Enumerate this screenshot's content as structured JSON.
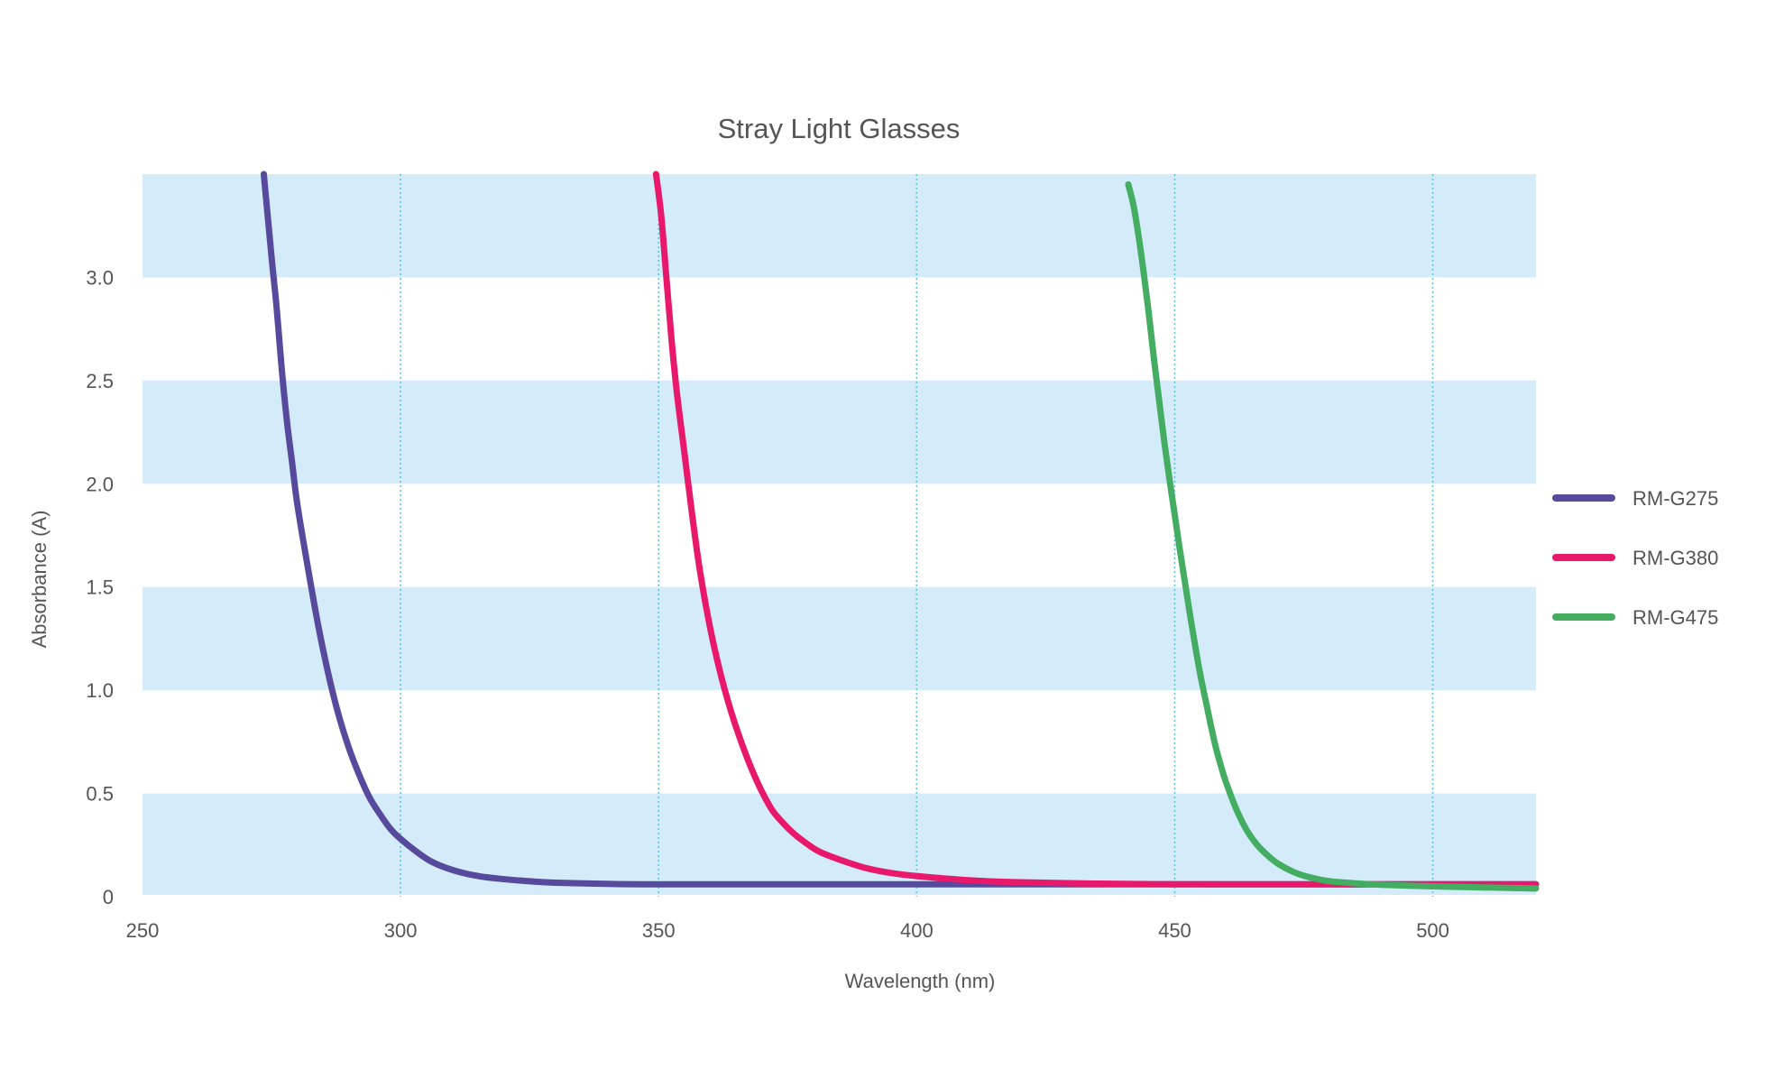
{
  "chart_data": {
    "type": "line",
    "title": "Stray Light Glasses",
    "xlabel": "Wavelength (nm)",
    "ylabel": "Absorbance (A)",
    "xlim": [
      250,
      520
    ],
    "ylim": [
      0,
      3.5
    ],
    "x_ticks": [
      250,
      300,
      350,
      400,
      450,
      500
    ],
    "x_tick_labels": [
      "250",
      "300",
      "350",
      "400",
      "450",
      "500"
    ],
    "y_ticks": [
      0,
      0.5,
      1.0,
      1.5,
      2.0,
      2.5,
      3.0
    ],
    "y_tick_labels": [
      "0",
      "0.5",
      "1.0",
      "1.5",
      "2.0",
      "2.5",
      "3.0"
    ],
    "grid": {
      "vertical": true,
      "horizontal_bands": true
    },
    "band_color": "#d4ecfa",
    "gridline_color": "#5bc0de",
    "legend_position": "right",
    "series": [
      {
        "name": "RM-G275",
        "color": "#574a9d",
        "points": [
          [
            273.5,
            3.5
          ],
          [
            275,
            3.1
          ],
          [
            276,
            2.85
          ],
          [
            277,
            2.55
          ],
          [
            278,
            2.3
          ],
          [
            279,
            2.1
          ],
          [
            280,
            1.9
          ],
          [
            282,
            1.6
          ],
          [
            284,
            1.32
          ],
          [
            286,
            1.08
          ],
          [
            288,
            0.88
          ],
          [
            290,
            0.72
          ],
          [
            292,
            0.59
          ],
          [
            294,
            0.48
          ],
          [
            296,
            0.4
          ],
          [
            298,
            0.33
          ],
          [
            300,
            0.28
          ],
          [
            303,
            0.22
          ],
          [
            306,
            0.17
          ],
          [
            310,
            0.13
          ],
          [
            315,
            0.1
          ],
          [
            320,
            0.085
          ],
          [
            325,
            0.075
          ],
          [
            330,
            0.068
          ],
          [
            340,
            0.062
          ],
          [
            350,
            0.06
          ],
          [
            380,
            0.06
          ],
          [
            420,
            0.06
          ],
          [
            470,
            0.06
          ],
          [
            520,
            0.06
          ]
        ]
      },
      {
        "name": "RM-G380",
        "color": "#e8186b",
        "points": [
          [
            349.5,
            3.5
          ],
          [
            350.5,
            3.3
          ],
          [
            351.5,
            3.0
          ],
          [
            352.5,
            2.7
          ],
          [
            353.5,
            2.45
          ],
          [
            355,
            2.15
          ],
          [
            356.5,
            1.85
          ],
          [
            358,
            1.58
          ],
          [
            360,
            1.3
          ],
          [
            362,
            1.08
          ],
          [
            364,
            0.9
          ],
          [
            366,
            0.75
          ],
          [
            368,
            0.62
          ],
          [
            370,
            0.51
          ],
          [
            372,
            0.42
          ],
          [
            374,
            0.36
          ],
          [
            376,
            0.31
          ],
          [
            378,
            0.27
          ],
          [
            381,
            0.22
          ],
          [
            385,
            0.18
          ],
          [
            390,
            0.14
          ],
          [
            395,
            0.115
          ],
          [
            400,
            0.1
          ],
          [
            410,
            0.08
          ],
          [
            420,
            0.07
          ],
          [
            440,
            0.062
          ],
          [
            460,
            0.06
          ],
          [
            490,
            0.06
          ],
          [
            520,
            0.06
          ]
        ]
      },
      {
        "name": "RM-G475",
        "color": "#44ad62",
        "points": [
          [
            441,
            3.45
          ],
          [
            442,
            3.35
          ],
          [
            443,
            3.2
          ],
          [
            444,
            3.02
          ],
          [
            445,
            2.82
          ],
          [
            446,
            2.6
          ],
          [
            447,
            2.4
          ],
          [
            448,
            2.2
          ],
          [
            449,
            2.02
          ],
          [
            450,
            1.85
          ],
          [
            451,
            1.68
          ],
          [
            452,
            1.52
          ],
          [
            453,
            1.36
          ],
          [
            454,
            1.21
          ],
          [
            455,
            1.07
          ],
          [
            456,
            0.95
          ],
          [
            457,
            0.83
          ],
          [
            458,
            0.72
          ],
          [
            459,
            0.63
          ],
          [
            460,
            0.55
          ],
          [
            462,
            0.42
          ],
          [
            464,
            0.32
          ],
          [
            466,
            0.25
          ],
          [
            468,
            0.2
          ],
          [
            470,
            0.16
          ],
          [
            473,
            0.12
          ],
          [
            476,
            0.095
          ],
          [
            480,
            0.075
          ],
          [
            485,
            0.065
          ],
          [
            490,
            0.058
          ],
          [
            500,
            0.05
          ],
          [
            510,
            0.045
          ],
          [
            520,
            0.04
          ]
        ]
      }
    ]
  }
}
